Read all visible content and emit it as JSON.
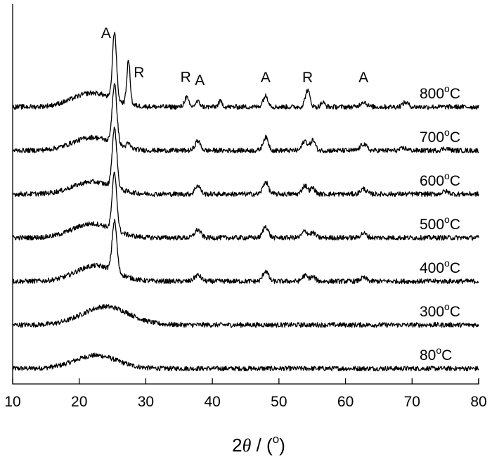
{
  "chart_data": {
    "type": "line",
    "title": "",
    "xlabel": "2θ / (°)",
    "xlabel_parts": {
      "prefix": "2",
      "theta": "θ",
      "suffix": " / (",
      "degree": "o",
      "close": ")"
    },
    "ylabel": "",
    "xlim": [
      10,
      80
    ],
    "xticks": [
      10,
      20,
      30,
      40,
      50,
      60,
      70,
      80
    ],
    "grid": false,
    "legend": "none",
    "y_offset_step": 1.0,
    "series": [
      {
        "name": "80°C",
        "label_number": "80",
        "label_unit": "C",
        "offset": 0,
        "peaks": [
          {
            "c": 22.5,
            "h": 0.3,
            "w": 3.2
          }
        ]
      },
      {
        "name": "300°C",
        "label_number": "300",
        "label_unit": "C",
        "offset": 1,
        "peaks": [
          {
            "c": 24.0,
            "h": 0.42,
            "w": 3.5
          }
        ]
      },
      {
        "name": "400°C",
        "label_number": "400",
        "label_unit": "C",
        "offset": 2,
        "peaks": [
          {
            "c": 22.5,
            "h": 0.36,
            "w": 3.0
          },
          {
            "c": 25.3,
            "h": 1.15,
            "w": 0.35
          },
          {
            "c": 37.8,
            "h": 0.14,
            "w": 0.5
          },
          {
            "c": 48.0,
            "h": 0.24,
            "w": 0.4
          },
          {
            "c": 53.9,
            "h": 0.13,
            "w": 0.4
          },
          {
            "c": 55.1,
            "h": 0.1,
            "w": 0.4
          },
          {
            "c": 62.7,
            "h": 0.08,
            "w": 0.45
          }
        ]
      },
      {
        "name": "500°C",
        "label_number": "500",
        "label_unit": "C",
        "offset": 3,
        "peaks": [
          {
            "c": 22.0,
            "h": 0.32,
            "w": 3.0
          },
          {
            "c": 25.3,
            "h": 1.3,
            "w": 0.35
          },
          {
            "c": 37.8,
            "h": 0.18,
            "w": 0.45
          },
          {
            "c": 48.0,
            "h": 0.26,
            "w": 0.4
          },
          {
            "c": 53.9,
            "h": 0.15,
            "w": 0.4
          },
          {
            "c": 55.1,
            "h": 0.11,
            "w": 0.4
          },
          {
            "c": 62.7,
            "h": 0.1,
            "w": 0.45
          }
        ]
      },
      {
        "name": "600°C",
        "label_number": "600",
        "label_unit": "C",
        "offset": 4,
        "peaks": [
          {
            "c": 22.0,
            "h": 0.28,
            "w": 3.0
          },
          {
            "c": 25.3,
            "h": 1.35,
            "w": 0.35
          },
          {
            "c": 37.8,
            "h": 0.2,
            "w": 0.4
          },
          {
            "c": 48.0,
            "h": 0.28,
            "w": 0.4
          },
          {
            "c": 53.9,
            "h": 0.2,
            "w": 0.4
          },
          {
            "c": 55.1,
            "h": 0.14,
            "w": 0.35
          },
          {
            "c": 62.7,
            "h": 0.12,
            "w": 0.45
          },
          {
            "c": 75.0,
            "h": 0.06,
            "w": 0.5
          }
        ]
      },
      {
        "name": "700°C",
        "label_number": "700",
        "label_unit": "C",
        "offset": 5,
        "peaks": [
          {
            "c": 22.0,
            "h": 0.3,
            "w": 3.0
          },
          {
            "c": 25.3,
            "h": 1.35,
            "w": 0.35
          },
          {
            "c": 27.4,
            "h": 0.1,
            "w": 0.3
          },
          {
            "c": 37.8,
            "h": 0.22,
            "w": 0.4
          },
          {
            "c": 48.0,
            "h": 0.3,
            "w": 0.4
          },
          {
            "c": 53.9,
            "h": 0.22,
            "w": 0.4
          },
          {
            "c": 55.1,
            "h": 0.24,
            "w": 0.35
          },
          {
            "c": 62.7,
            "h": 0.15,
            "w": 0.45
          },
          {
            "c": 68.8,
            "h": 0.05,
            "w": 0.5
          },
          {
            "c": 75.0,
            "h": 0.05,
            "w": 0.5
          }
        ]
      },
      {
        "name": "800°C",
        "label_number": "800",
        "label_unit": "C",
        "offset": 6,
        "peaks": [
          {
            "c": 22.0,
            "h": 0.32,
            "w": 3.0
          },
          {
            "c": 25.3,
            "h": 1.55,
            "w": 0.3
          },
          {
            "c": 27.4,
            "h": 1.0,
            "w": 0.25
          },
          {
            "c": 36.1,
            "h": 0.22,
            "w": 0.3
          },
          {
            "c": 37.8,
            "h": 0.12,
            "w": 0.35
          },
          {
            "c": 41.2,
            "h": 0.12,
            "w": 0.3
          },
          {
            "c": 48.0,
            "h": 0.25,
            "w": 0.4
          },
          {
            "c": 54.3,
            "h": 0.38,
            "w": 0.35
          },
          {
            "c": 56.6,
            "h": 0.1,
            "w": 0.3
          },
          {
            "c": 62.7,
            "h": 0.12,
            "w": 0.45
          },
          {
            "c": 69.0,
            "h": 0.1,
            "w": 0.45
          }
        ]
      }
    ],
    "annotations": [
      {
        "text": "A",
        "x": 25.3,
        "series": "800°C",
        "phase": "anatase"
      },
      {
        "text": "R",
        "x": 27.4,
        "series": "800°C",
        "phase": "rutile"
      },
      {
        "text": "R",
        "x": 36.1,
        "series": "800°C",
        "phase": "rutile"
      },
      {
        "text": "A",
        "x": 37.8,
        "series": "800°C",
        "phase": "anatase"
      },
      {
        "text": "A",
        "x": 48.0,
        "series": "800°C",
        "phase": "anatase"
      },
      {
        "text": "R",
        "x": 54.3,
        "series": "800°C",
        "phase": "rutile"
      },
      {
        "text": "A",
        "x": 62.7,
        "series": "800°C",
        "phase": "anatase"
      }
    ]
  }
}
